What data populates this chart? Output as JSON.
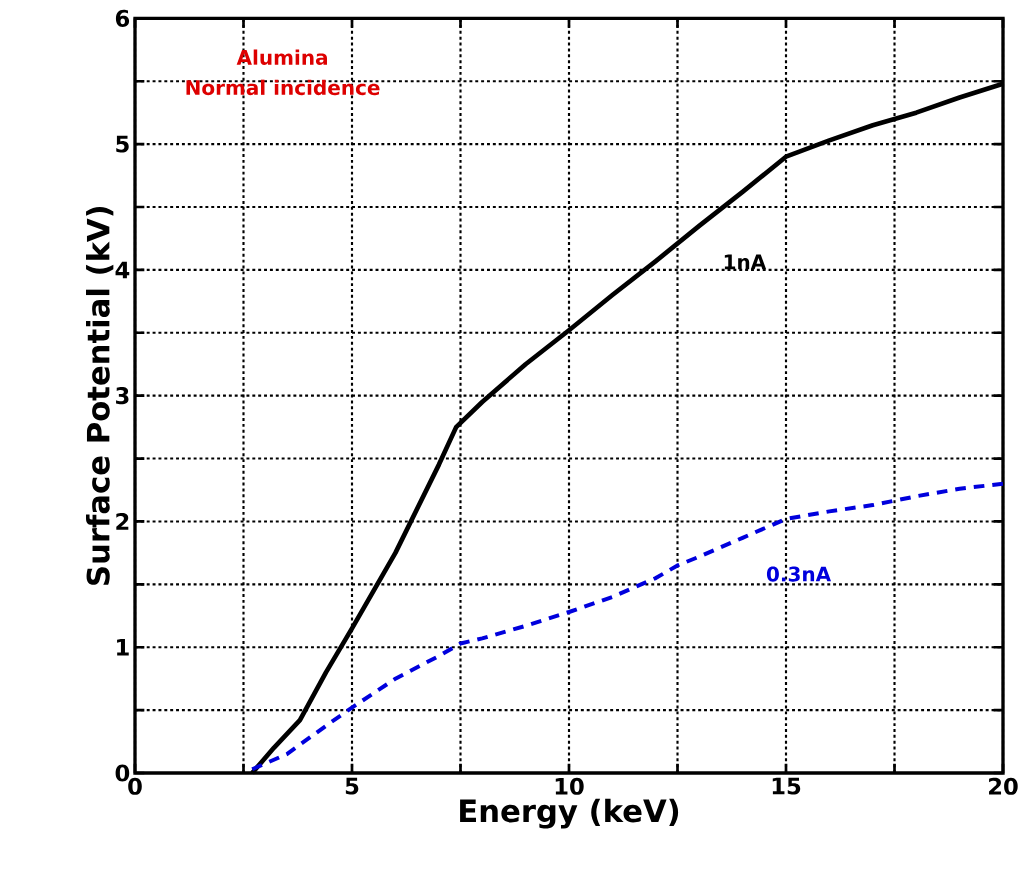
{
  "chart_data": {
    "type": "line",
    "xlabel": "Energy (keV)",
    "ylabel": "Surface Potential (kV)",
    "xlim": [
      0,
      20
    ],
    "ylim": [
      0,
      6
    ],
    "xticks": [
      0,
      {
        "value": 2.5,
        "label": null
      },
      5,
      {
        "value": 7.5,
        "label": null
      },
      10,
      {
        "value": 12.5,
        "label": null
      },
      15,
      {
        "value": 17.5,
        "label": null
      },
      20
    ],
    "yticks": [
      0,
      {
        "value": 0.5,
        "label": null
      },
      1,
      {
        "value": 1.5,
        "label": null
      },
      2,
      {
        "value": 2.5,
        "label": null
      },
      3,
      {
        "value": 3.5,
        "label": null
      },
      4,
      {
        "value": 4.5,
        "label": null
      },
      5,
      {
        "value": 5.5,
        "label": null
      },
      6
    ],
    "grid": true,
    "marker": "none",
    "legend": false,
    "series": [
      {
        "name": "1nA",
        "color": "#000000",
        "line_style": "solid",
        "x": [
          2.7,
          3.2,
          3.8,
          4.4,
          5,
          5.5,
          6,
          6.5,
          7,
          7.4,
          8,
          9,
          10,
          11,
          12,
          13,
          14,
          15,
          16,
          17,
          18,
          19,
          20
        ],
        "values": [
          0,
          0.2,
          0.42,
          0.8,
          1.15,
          1.45,
          1.75,
          2.1,
          2.45,
          2.75,
          2.95,
          3.25,
          3.52,
          3.8,
          4.07,
          4.35,
          4.62,
          4.9,
          5.03,
          5.15,
          5.25,
          5.37,
          5.48
        ]
      },
      {
        "name": "0.3nA",
        "color": "#0000dd",
        "line_style": "dashed",
        "x": [
          2.7,
          3.5,
          4.5,
          5,
          6,
          7,
          7.5,
          8,
          9,
          10,
          11,
          12,
          12.5,
          13,
          14,
          15,
          16,
          17,
          18,
          19,
          20
        ],
        "values": [
          0.03,
          0.15,
          0.4,
          0.52,
          0.75,
          0.93,
          1.03,
          1.07,
          1.17,
          1.28,
          1.4,
          1.55,
          1.65,
          1.72,
          1.87,
          2.02,
          2.08,
          2.13,
          2.2,
          2.26,
          2.3
        ]
      }
    ],
    "annotations": [
      "Alumina",
      "Normal incidence"
    ]
  }
}
